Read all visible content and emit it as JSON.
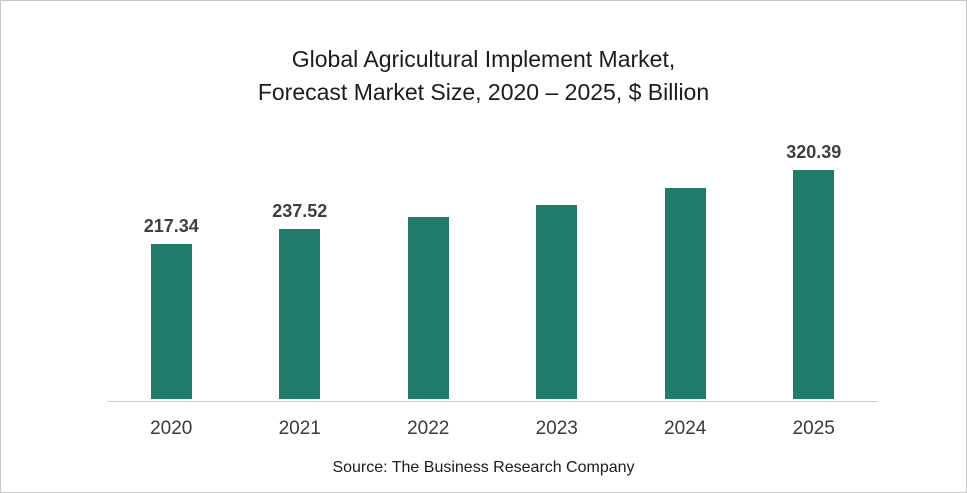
{
  "page": {
    "background": "#ffffff",
    "border_color": "#c6c6c6"
  },
  "title": {
    "line1": "Global Agricultural Implement Market,",
    "line2": "Forecast Market Size, 2020 – 2025, $ Billion"
  },
  "source": {
    "label": "Source: The Business Research Company"
  },
  "chart_data": {
    "type": "bar",
    "title": "Global Agricultural Implement Market, Forecast Market Size, 2020 – 2025, $ Billion",
    "categories": [
      "2020",
      "2021",
      "2022",
      "2023",
      "2024",
      "2025"
    ],
    "values": [
      217.34,
      237.52,
      255.6,
      271.1,
      295.9,
      320.39
    ],
    "data_labels": [
      "217.34",
      "237.52",
      "",
      "",
      "",
      "320.39"
    ],
    "xlabel": "",
    "ylabel": "",
    "ylim": [
      0,
      340
    ],
    "grid": false,
    "legend": false,
    "y_axis_visible": false,
    "bar_color": "#217b6b",
    "data_label_color": "#3f3f3f",
    "tick_label_color": "#3a3a3a",
    "baseline_color": "#cfcfcf"
  }
}
